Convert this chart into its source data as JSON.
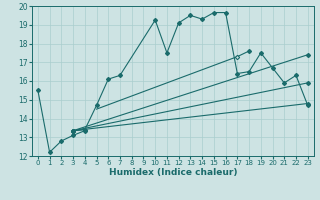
{
  "xlabel": "Humidex (Indice chaleur)",
  "xlim": [
    -0.5,
    23.5
  ],
  "ylim": [
    12,
    20
  ],
  "yticks": [
    12,
    13,
    14,
    15,
    16,
    17,
    18,
    19,
    20
  ],
  "xticks": [
    0,
    1,
    2,
    3,
    4,
    5,
    6,
    7,
    8,
    9,
    10,
    11,
    12,
    13,
    14,
    15,
    16,
    17,
    18,
    19,
    20,
    21,
    22,
    23
  ],
  "bg_color": "#cde3e3",
  "grid_color": "#aacece",
  "line_color": "#1a6b6b",
  "line1_x": [
    0,
    1,
    2,
    3,
    4
  ],
  "line1_y": [
    15.5,
    12.2,
    12.8,
    13.1,
    13.35
  ],
  "line2_x": [
    3,
    4,
    5,
    6,
    7,
    10,
    11,
    12,
    13,
    14,
    15,
    16,
    17,
    18,
    19,
    20,
    21,
    22,
    23
  ],
  "line2_y": [
    13.35,
    13.4,
    14.7,
    16.1,
    16.3,
    19.25,
    17.5,
    19.1,
    19.5,
    19.3,
    19.65,
    19.65,
    16.4,
    16.5,
    17.5,
    16.7,
    15.9,
    16.3,
    14.7
  ],
  "line3_x": [
    3,
    23
  ],
  "line3_y": [
    13.35,
    14.8
  ],
  "line4_x": [
    3,
    23
  ],
  "line4_y": [
    13.35,
    15.9
  ],
  "line5_x": [
    3,
    23
  ],
  "line5_y": [
    13.35,
    17.4
  ],
  "line6_x": [
    5,
    17,
    18
  ],
  "line6_y": [
    14.5,
    17.3,
    17.6
  ]
}
